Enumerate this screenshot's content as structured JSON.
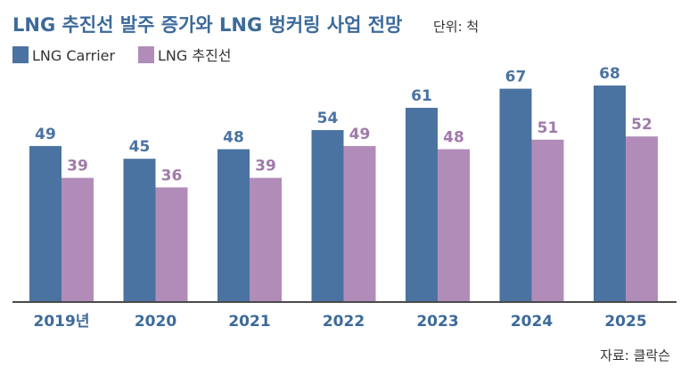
{
  "chart_data": {
    "type": "bar",
    "title": "LNG 추진선 발주 증가와 LNG 벙커링 사업 전망",
    "unit_label": "단위: 척",
    "source": "자료: 클락슨",
    "categories": [
      "2019년",
      "2020",
      "2021",
      "2022",
      "2023",
      "2024",
      "2025"
    ],
    "series": [
      {
        "name": "LNG Carrier",
        "color": "#4a73a1",
        "label_color": "#4a73a1",
        "values": [
          49,
          45,
          48,
          54,
          61,
          67,
          68
        ]
      },
      {
        "name": "LNG 추진선",
        "color": "#b18cb9",
        "label_color": "#a07aaa",
        "values": [
          39,
          36,
          39,
          49,
          48,
          51,
          52
        ]
      }
    ],
    "ylim": [
      0,
      68
    ],
    "grid": false,
    "legend_position": "top-left",
    "xlabel": "",
    "ylabel": ""
  }
}
